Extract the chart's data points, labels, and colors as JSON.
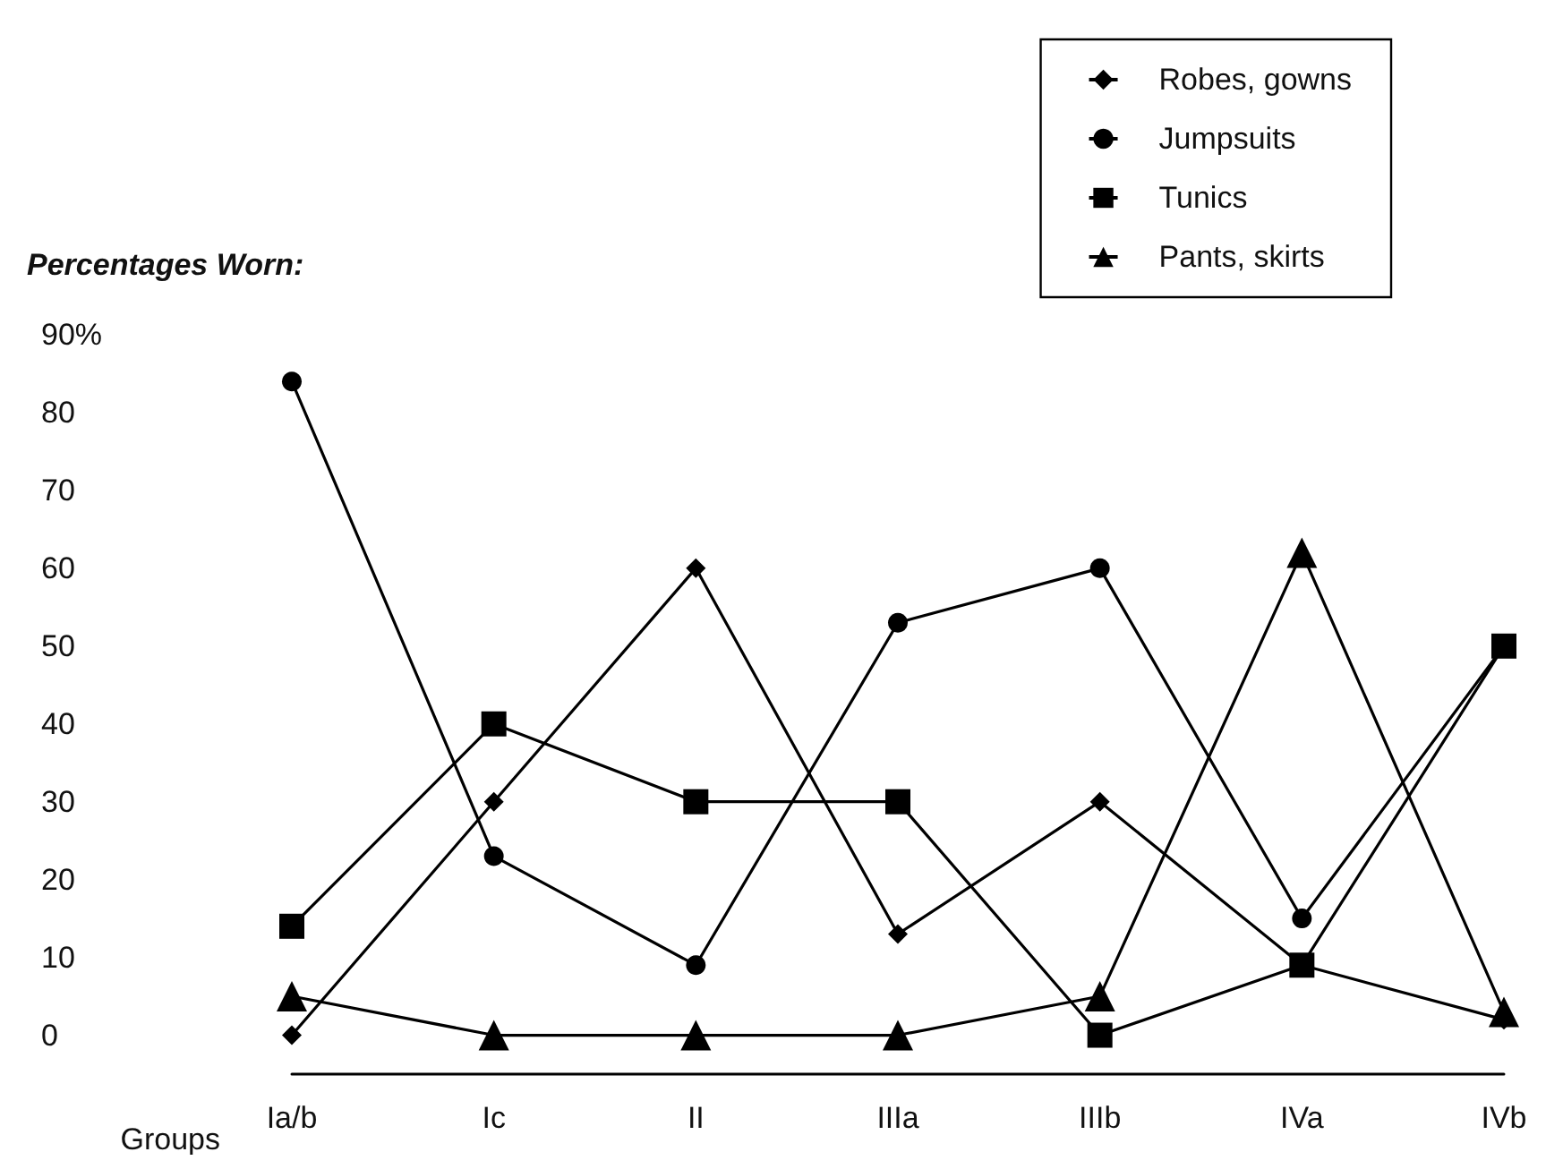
{
  "chart_data": {
    "type": "line",
    "ylabel": "Percentages Worn:",
    "xlabel": "Groups",
    "categories": [
      "Ia/b",
      "Ic",
      "II",
      "IIIa",
      "IIIb",
      "IVa",
      "IVb"
    ],
    "series": [
      {
        "name": "Robes, gowns",
        "color": "#000000",
        "marker": "diamond",
        "values": [
          0,
          30,
          60,
          13,
          30,
          9,
          2
        ]
      },
      {
        "name": "Jumpsuits",
        "color": "#000000",
        "marker": "circle",
        "values": [
          84,
          23,
          9,
          53,
          60,
          15,
          50
        ]
      },
      {
        "name": "Tunics",
        "color": "#000000",
        "marker": "square",
        "values": [
          14,
          40,
          30,
          30,
          0,
          9,
          50
        ]
      },
      {
        "name": "Pants, skirts",
        "color": "#000000",
        "marker": "triangle",
        "values": [
          5,
          0,
          0,
          0,
          5,
          62,
          3
        ]
      }
    ],
    "ylim": [
      -5,
      90
    ],
    "yticks": [
      0,
      10,
      20,
      30,
      40,
      50,
      60,
      70,
      80,
      {
        "value": 90,
        "label": "90%"
      }
    ],
    "grid": false,
    "legend": "top right",
    "line_style": "solid"
  }
}
